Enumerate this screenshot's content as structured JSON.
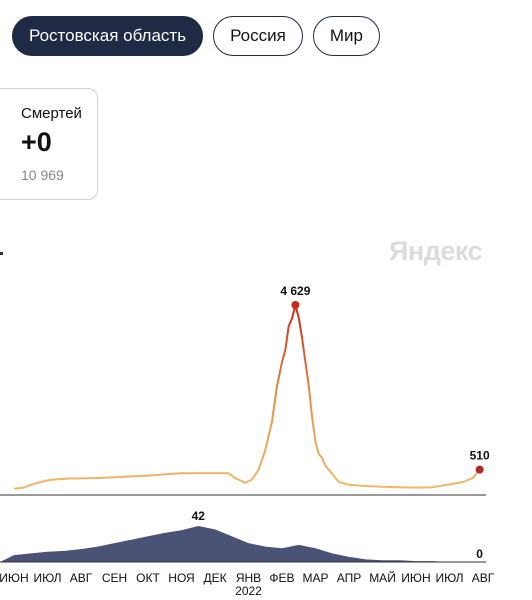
{
  "tabs": [
    {
      "label": "Ростовская область",
      "active": true
    },
    {
      "label": "Россия",
      "active": false
    },
    {
      "label": "Мир",
      "active": false
    }
  ],
  "card": {
    "label": "Смертей",
    "value": "+0",
    "total": "10 969"
  },
  "brand": "Яндекс",
  "colors": {
    "accent_dark": "#1f2a44",
    "cases_low": "#f0b86a",
    "cases_high": "#c8281c",
    "deaths": "#4a5276"
  },
  "chart_data": [
    {
      "type": "area",
      "name": "cases",
      "peak_label": "4 629",
      "last_label": "510",
      "x_ticks": [
        "ИЮН",
        "ИЮЛ",
        "АВГ",
        "СЕН",
        "ОКТ",
        "НОЯ",
        "ДЕК",
        "ЯНВ",
        "ФЕВ",
        "МАР",
        "АПР",
        "МАЙ",
        "ИЮН",
        "ИЮЛ",
        "АВГ"
      ],
      "year_label": "2022",
      "points": [
        [
          0,
          30
        ],
        [
          0.3,
          60
        ],
        [
          0.5,
          130
        ],
        [
          0.8,
          200
        ],
        [
          1,
          240
        ],
        [
          1.3,
          270
        ],
        [
          1.6,
          285
        ],
        [
          2,
          290
        ],
        [
          2.5,
          300
        ],
        [
          3,
          320
        ],
        [
          3.5,
          340
        ],
        [
          4,
          360
        ],
        [
          4.5,
          390
        ],
        [
          4.8,
          410
        ],
        [
          5,
          420
        ],
        [
          5.5,
          420
        ],
        [
          6,
          420
        ],
        [
          6.4,
          420
        ],
        [
          6.6,
          300
        ],
        [
          6.9,
          180
        ],
        [
          7.1,
          260
        ],
        [
          7.3,
          500
        ],
        [
          7.5,
          1000
        ],
        [
          7.7,
          1700
        ],
        [
          7.85,
          2600
        ],
        [
          8,
          3200
        ],
        [
          8.1,
          3500
        ],
        [
          8.2,
          4100
        ],
        [
          8.3,
          4300
        ],
        [
          8.4,
          4629
        ],
        [
          8.5,
          4300
        ],
        [
          8.6,
          3800
        ],
        [
          8.7,
          3200
        ],
        [
          8.8,
          2600
        ],
        [
          8.9,
          1800
        ],
        [
          9,
          1200
        ],
        [
          9.1,
          900
        ],
        [
          9.2,
          800
        ],
        [
          9.3,
          600
        ],
        [
          9.5,
          400
        ],
        [
          9.7,
          200
        ],
        [
          10,
          130
        ],
        [
          10.5,
          100
        ],
        [
          11,
          80
        ],
        [
          11.5,
          70
        ],
        [
          12,
          60
        ],
        [
          12.5,
          70
        ],
        [
          13,
          140
        ],
        [
          13.4,
          200
        ],
        [
          13.7,
          300
        ],
        [
          13.9,
          510
        ]
      ]
    },
    {
      "type": "area",
      "name": "deaths",
      "peak_label": "42",
      "last_label": "0",
      "points": [
        [
          0,
          8
        ],
        [
          0.5,
          10
        ],
        [
          1,
          12
        ],
        [
          1.5,
          13
        ],
        [
          2,
          15
        ],
        [
          2.5,
          18
        ],
        [
          3,
          22
        ],
        [
          3.5,
          26
        ],
        [
          4,
          30
        ],
        [
          4.5,
          34
        ],
        [
          5,
          37
        ],
        [
          5.5,
          42
        ],
        [
          6,
          38
        ],
        [
          6.5,
          30
        ],
        [
          7,
          22
        ],
        [
          7.5,
          18
        ],
        [
          8,
          16
        ],
        [
          8.5,
          20
        ],
        [
          9,
          16
        ],
        [
          9.5,
          10
        ],
        [
          10,
          6
        ],
        [
          10.5,
          3
        ],
        [
          11,
          2
        ],
        [
          11.5,
          2
        ],
        [
          12,
          1
        ],
        [
          12.5,
          1
        ],
        [
          13,
          0
        ],
        [
          13.5,
          0
        ],
        [
          13.9,
          0
        ]
      ]
    }
  ]
}
